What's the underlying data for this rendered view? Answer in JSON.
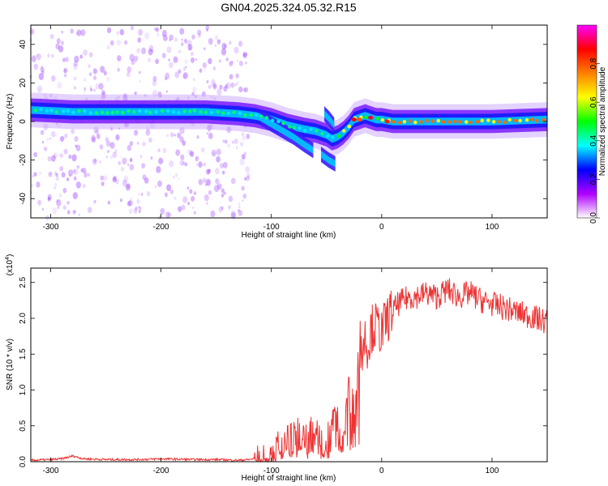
{
  "title": "GN04.2025.324.05.32.R15",
  "chart_data": [
    {
      "type": "heatmap",
      "xlabel": "Height of straight line (km)",
      "ylabel": "Frequency (Hz)",
      "xlim": [
        -318,
        150
      ],
      "ylim": [
        -50,
        50
      ],
      "xticks": [
        -300,
        -200,
        -100,
        0,
        100
      ],
      "xtick_labels": [
        "-300",
        "-200",
        "-100",
        "0",
        "100"
      ],
      "yticks": [
        -40,
        -20,
        0,
        20,
        40
      ],
      "ytick_labels": [
        "-40",
        "-20",
        "0",
        "20",
        "40"
      ],
      "colorbar": {
        "label": "Normalized spectral amplitude",
        "range": [
          0,
          1
        ],
        "ticks": [
          0.0,
          0.2,
          0.4,
          0.6,
          0.8
        ],
        "tick_labels": [
          "0.0",
          "0.2",
          "0.4",
          "0.6",
          "0.8"
        ],
        "colors": [
          "#ffffff",
          "#b000ff",
          "#0000ff",
          "#00ffff",
          "#00ff00",
          "#ffff00",
          "#ff8000",
          "#ff0000",
          "#ff00ff"
        ]
      },
      "ridge": {
        "x": [
          -318,
          -280,
          -240,
          -200,
          -160,
          -130,
          -115,
          -100,
          -85,
          -70,
          -60,
          -50,
          -45,
          -40,
          -35,
          -30,
          -25,
          -20,
          -15,
          -10,
          -5,
          0,
          10,
          30,
          60,
          100,
          150
        ],
        "freq": [
          6,
          5,
          5,
          5,
          5,
          4,
          3,
          1,
          -2,
          -4,
          -5,
          -7,
          -9,
          -8,
          -6,
          -3,
          1,
          2,
          3,
          2,
          1,
          1,
          0,
          0,
          0,
          0,
          1
        ]
      },
      "branches": [
        {
          "x": [
            -110,
            -95,
            -80,
            -70,
            -62
          ],
          "freq": [
            2,
            -3,
            -8,
            -12,
            -15
          ]
        },
        {
          "x": [
            -55,
            -48,
            -42
          ],
          "freq": [
            -17,
            -20,
            -22
          ]
        },
        {
          "x": [
            -52,
            -47,
            -43
          ],
          "freq": [
            4,
            1,
            -2
          ]
        }
      ],
      "grid": false,
      "legend": "colorbar-right"
    },
    {
      "type": "line",
      "xlabel": "Height of straight line (km)",
      "ylabel": "SNR (10 * v/v)",
      "multiplier": "(x10",
      "multiplier_exp": "4",
      "xlim": [
        -318,
        150
      ],
      "ylim": [
        0,
        2.7
      ],
      "xticks": [
        -300,
        -200,
        -100,
        0,
        100
      ],
      "xtick_labels": [
        "-300",
        "-200",
        "-100",
        "0",
        "100"
      ],
      "yticks": [
        0.0,
        0.5,
        1.0,
        1.5,
        2.0,
        2.5
      ],
      "ytick_labels": [
        "0.0",
        "0.5",
        "1.0",
        "1.5",
        "2.0",
        "2.5"
      ],
      "color": "#ee3333",
      "series": [
        {
          "x": [
            -318,
            -300,
            -290,
            -280,
            -270,
            -250,
            -220,
            -200,
            -170,
            -150,
            -130,
            -120,
            -110,
            -100,
            -95,
            -90,
            -85,
            -80,
            -75,
            -70,
            -65,
            -60,
            -55,
            -50,
            -45,
            -40,
            -38,
            -35,
            -32,
            -30,
            -28,
            -25,
            -22,
            -20,
            -18,
            -15,
            -12,
            -10,
            -5,
            0,
            5,
            10,
            15,
            20,
            25,
            30,
            40,
            50,
            60,
            70,
            80,
            90,
            100,
            110,
            120,
            130,
            140,
            150
          ],
          "values": [
            0.02,
            0.03,
            0.04,
            0.08,
            0.04,
            0.03,
            0.03,
            0.04,
            0.03,
            0.03,
            0.02,
            0.03,
            0.06,
            0.12,
            0.2,
            0.28,
            0.3,
            0.35,
            0.45,
            0.3,
            0.42,
            0.5,
            0.35,
            0.3,
            0.55,
            0.6,
            0.45,
            0.35,
            0.7,
            1.05,
            0.9,
            0.8,
            1.2,
            1.7,
            1.55,
            1.75,
            1.6,
            1.85,
            1.9,
            1.8,
            2.0,
            2.1,
            2.2,
            2.25,
            2.3,
            2.3,
            2.35,
            2.3,
            2.4,
            2.3,
            2.35,
            2.25,
            2.2,
            2.15,
            2.1,
            2.05,
            2.0,
            1.95
          ]
        }
      ],
      "grid": false
    }
  ]
}
